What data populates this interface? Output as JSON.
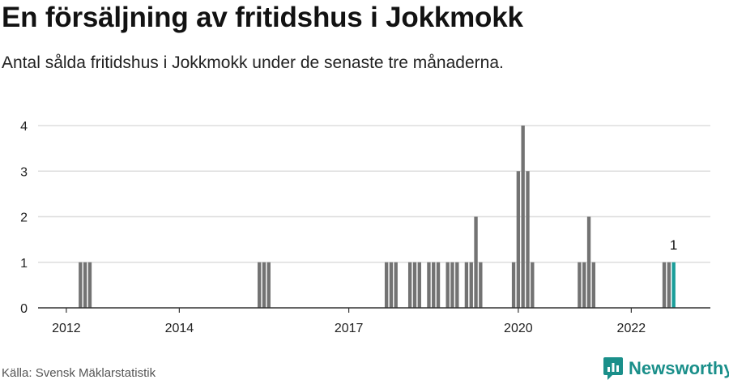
{
  "title": "En försäljning av fritidshus i Jokkmokk",
  "subtitle": "Antal sålda fritidshus i Jokkmokk under de senaste tre månaderna.",
  "source": "Källa: Svensk Mäklarstatistik",
  "brand": {
    "name": "Newsworthy",
    "icon": "newsworthy-logo-icon",
    "color": "#1a8f8a"
  },
  "colors": {
    "bar": "#737373",
    "highlight": "#1a9e9a",
    "grid": "#dddddd",
    "axis": "#333333"
  },
  "chart_data": {
    "type": "bar",
    "ylim": [
      0,
      4
    ],
    "yticks": [
      "0",
      "1",
      "2",
      "3",
      "4"
    ],
    "xrange": [
      2011.5,
      2023.4
    ],
    "xticks": [
      "2012",
      "2014",
      "2017",
      "2020",
      "2022"
    ],
    "xtick_positions": [
      2012.0,
      2014.0,
      2017.0,
      2020.0,
      2022.0
    ],
    "grid": true,
    "bar_width_years": 0.0625,
    "x": [
      2012.25,
      2012.333,
      2012.417,
      2015.417,
      2015.5,
      2015.583,
      2017.667,
      2017.75,
      2017.833,
      2018.083,
      2018.167,
      2018.25,
      2018.417,
      2018.5,
      2018.583,
      2018.75,
      2018.833,
      2018.917,
      2019.083,
      2019.167,
      2019.25,
      2019.333,
      2019.917,
      2020.0,
      2020.083,
      2020.167,
      2020.25,
      2021.083,
      2021.167,
      2021.25,
      2021.333,
      2022.583,
      2022.667,
      2022.75
    ],
    "values": [
      1,
      1,
      1,
      1,
      1,
      1,
      1,
      1,
      1,
      1,
      1,
      1,
      1,
      1,
      1,
      1,
      1,
      1,
      1,
      1,
      2,
      1,
      1,
      3,
      4,
      3,
      1,
      1,
      1,
      2,
      1,
      1,
      1,
      1
    ],
    "highlight_index": 33,
    "annotation": {
      "text": "1",
      "x": 2022.75,
      "y": 1
    }
  }
}
